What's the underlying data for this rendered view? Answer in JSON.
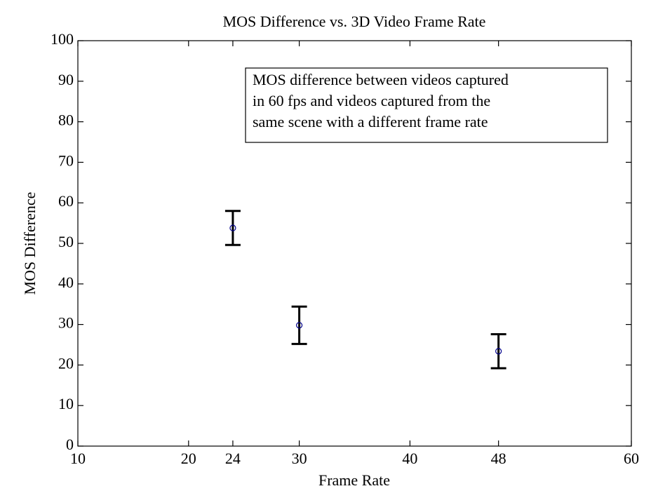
{
  "chart_data": {
    "type": "errorbar",
    "title": "MOS Difference vs. 3D Video Frame Rate",
    "x_label": "Frame Rate",
    "y_label": "MOS Difference",
    "annotation": [
      "MOS difference between videos captured",
      "in 60 fps and videos captured from the",
      "same scene with a different frame rate"
    ],
    "x": [
      24,
      30,
      48
    ],
    "values": [
      53.8,
      29.8,
      23.4
    ],
    "errors": [
      4.2,
      4.6,
      4.2
    ],
    "color": "#00008b",
    "error_color": "#000000",
    "xlim": [
      10,
      60
    ],
    "xticks": [
      10,
      20,
      24,
      30,
      40,
      48,
      60
    ],
    "ylim": [
      0,
      100
    ],
    "yticks": [
      0,
      10,
      20,
      30,
      40,
      50,
      60,
      70,
      80,
      90,
      100
    ]
  }
}
